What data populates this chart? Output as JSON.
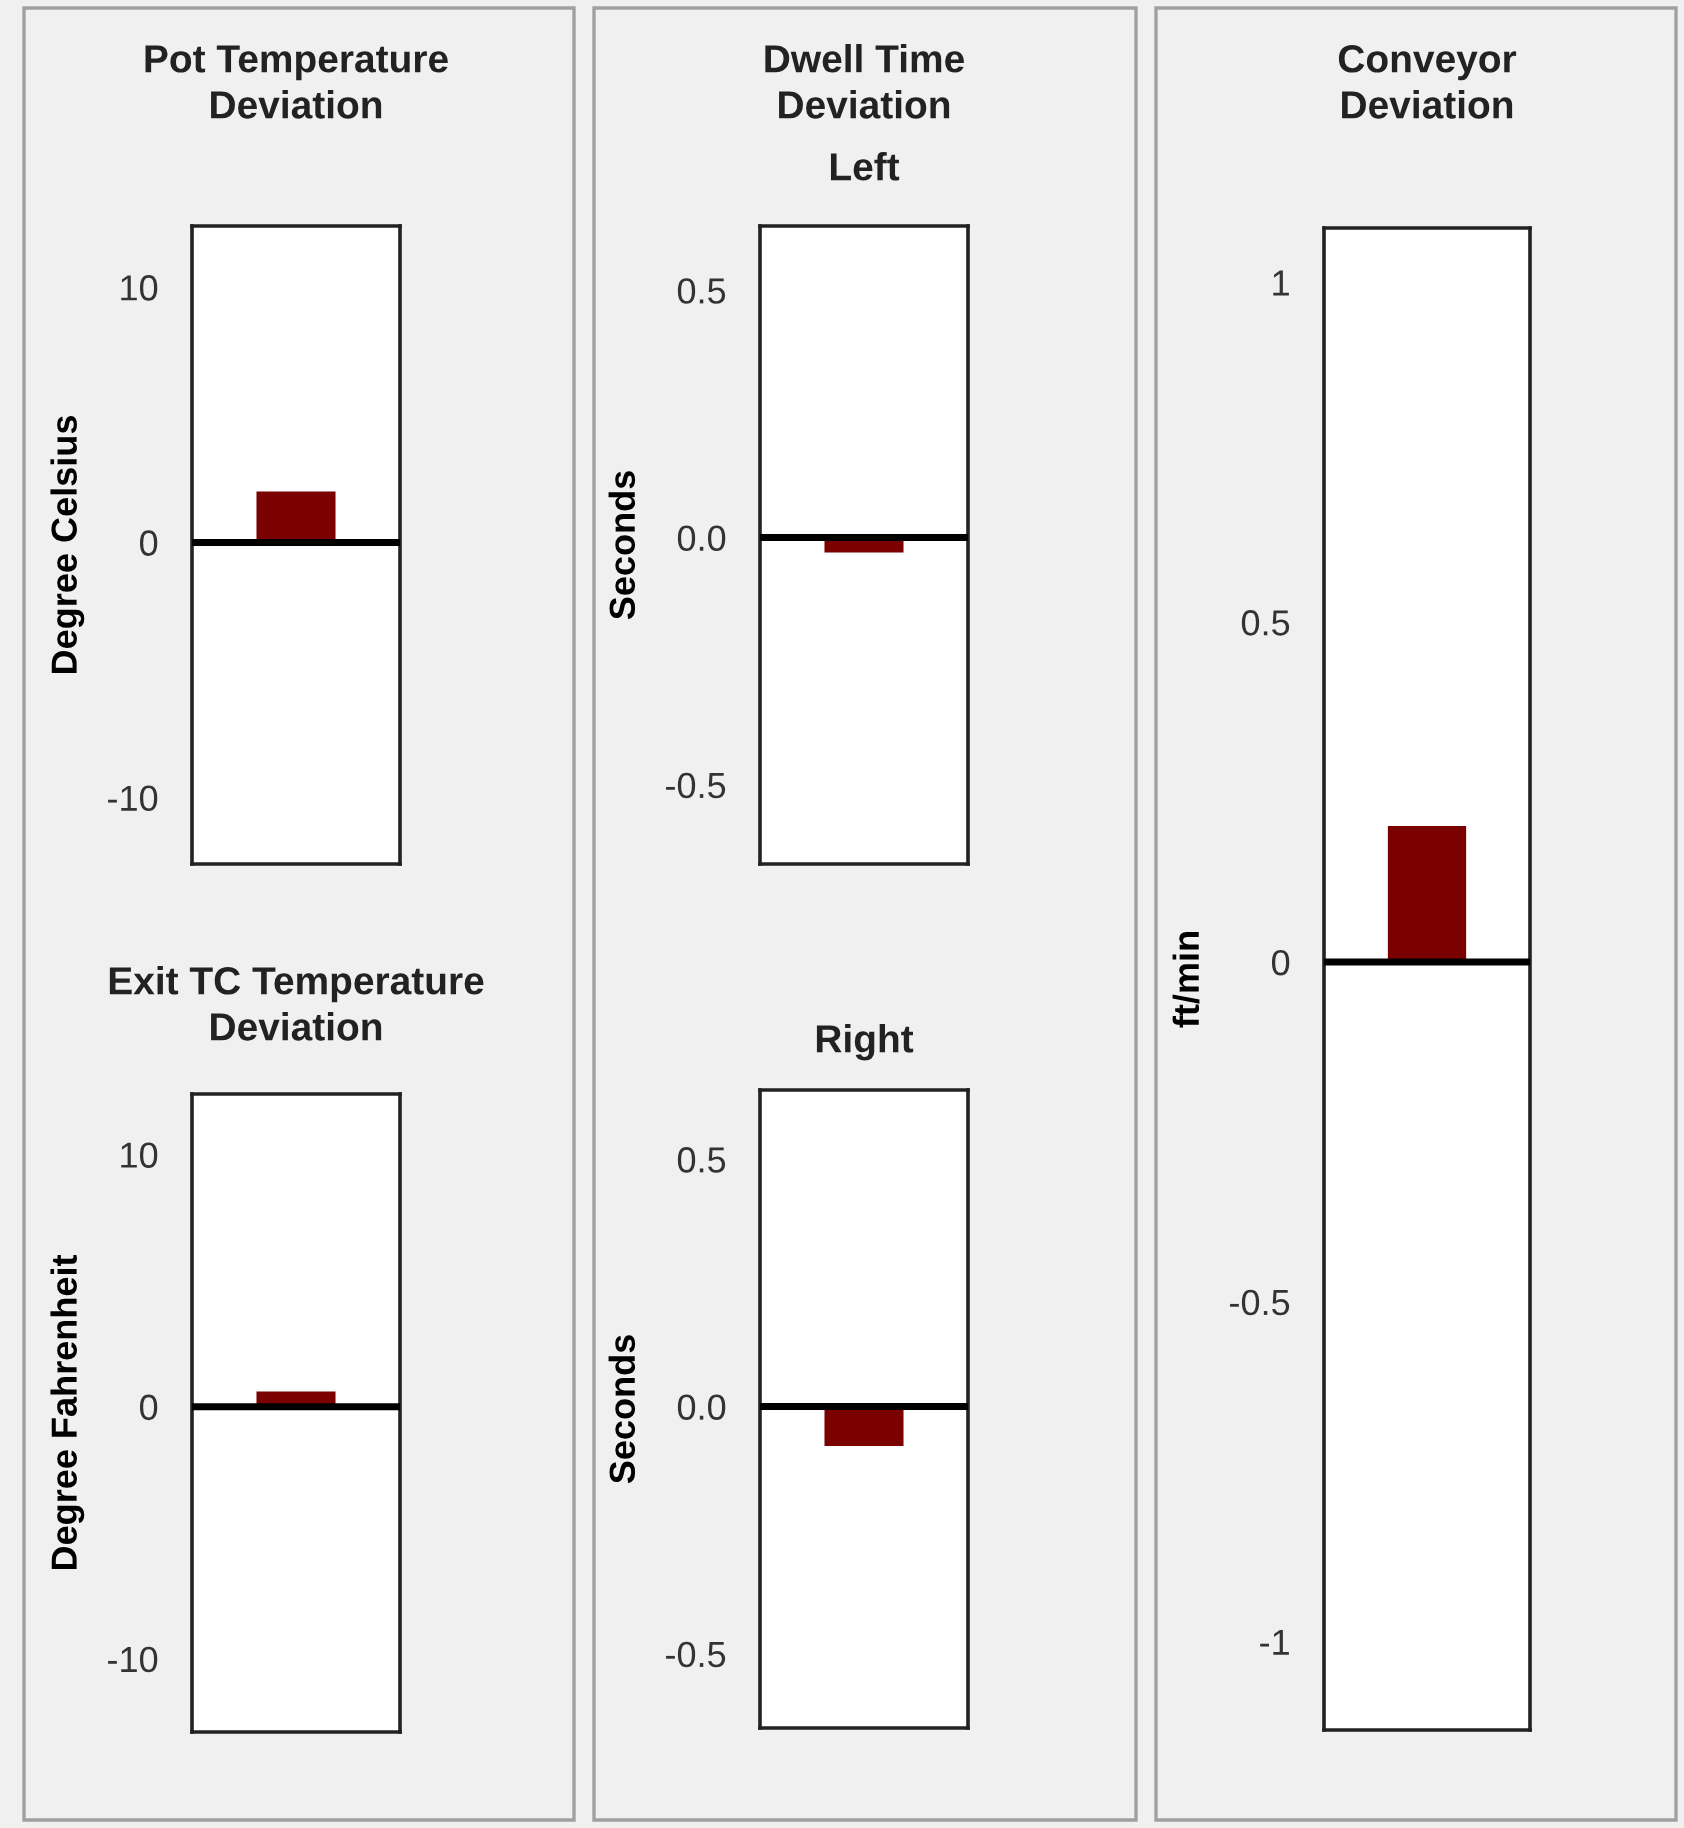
{
  "chart_data": [
    {
      "type": "bar",
      "title": "Pot Temperature\nDeviation",
      "ylabel": "Degree Celsius",
      "categories": [
        null
      ],
      "values": [
        2.0
      ],
      "color": "#7b0000",
      "ylim": [
        -12.6,
        12.4
      ],
      "yticks": [
        -10,
        0,
        10
      ],
      "tick_labels": "y",
      "ref_lines": [
        {
          "axis": "y",
          "value": 0,
          "color": "#000000"
        }
      ]
    },
    {
      "type": "bar",
      "title": "Exit TC Temperature\nDeviation",
      "ylabel": "Degree Fahrenheit",
      "categories": [
        null
      ],
      "values": [
        0.6
      ],
      "color": "#7b0000",
      "ylim": [
        -12.9,
        12.4
      ],
      "yticks": [
        -10,
        0,
        10
      ],
      "tick_labels": "y",
      "ref_lines": [
        {
          "axis": "y",
          "value": 0,
          "color": "#000000"
        }
      ]
    },
    {
      "type": "bar",
      "title": "Dwell Time\nDeviation",
      "subtitle": "Left",
      "ylabel": "Seconds",
      "categories": [
        null
      ],
      "values": [
        -0.03
      ],
      "color": "#7b0000",
      "ylim": [
        -0.66,
        0.63
      ],
      "yticks": [
        -0.5,
        {
          "value": 0,
          "label": "0.0"
        },
        0.5
      ],
      "tick_labels": "y",
      "ref_lines": [
        {
          "axis": "y",
          "value": 0,
          "color": "#000000"
        }
      ]
    },
    {
      "type": "bar",
      "title": "Right",
      "ylabel": "Seconds",
      "categories": [
        null
      ],
      "values": [
        -0.08
      ],
      "color": "#7b0000",
      "ylim": [
        -0.65,
        0.64
      ],
      "yticks": [
        -0.5,
        {
          "value": 0,
          "label": "0.0"
        },
        0.5
      ],
      "tick_labels": "y",
      "ref_lines": [
        {
          "axis": "y",
          "value": 0,
          "color": "#000000"
        }
      ]
    },
    {
      "type": "bar",
      "title": "Conveyor\nDeviation",
      "ylabel": "ft/min",
      "categories": [
        null
      ],
      "values": [
        0.2
      ],
      "color": "#7b0000",
      "ylim": [
        -1.13,
        1.08
      ],
      "yticks": [
        -1,
        -0.5,
        0,
        0.5,
        1
      ],
      "tick_labels": "y",
      "ref_lines": [
        {
          "axis": "y",
          "value": 0,
          "color": "#000000"
        }
      ]
    }
  ]
}
